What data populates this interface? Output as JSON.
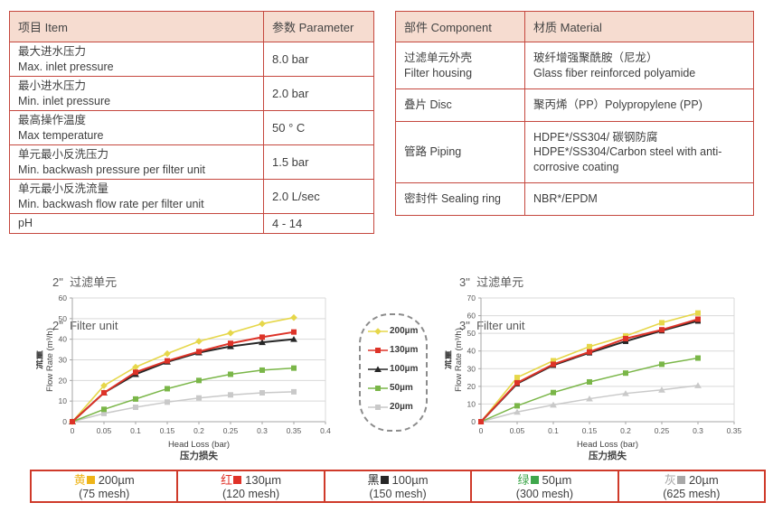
{
  "colors": {
    "table_border": "#c5473e",
    "header_bg": "#f6dcd0",
    "legend_border_red": "#cf3a2a",
    "grid": "#d9d9d9",
    "axis": "#a6a6a6",
    "tick_text": "#595959"
  },
  "spec_table": {
    "headers": [
      "项目 Item",
      "参数 Parameter"
    ],
    "rows": [
      {
        "item": [
          "最大进水压力",
          "Max. inlet pressure"
        ],
        "value": "8.0 bar"
      },
      {
        "item": [
          "最小进水压力",
          "Min. inlet pressure"
        ],
        "value": "2.0 bar"
      },
      {
        "item": [
          "最高操作温度",
          "Max temperature"
        ],
        "value": "50 ° C"
      },
      {
        "item": [
          "单元最小反洗压力",
          "Min. backwash pressure per filter unit"
        ],
        "value": "1.5 bar"
      },
      {
        "item": [
          "单元最小反洗流量",
          "Min. backwash flow rate per filter unit"
        ],
        "value": "2.0 L/sec"
      },
      {
        "item": [
          "pH"
        ],
        "value": "4 - 14"
      }
    ]
  },
  "material_table": {
    "headers": [
      "部件 Component",
      "材质 Material"
    ],
    "rows": [
      {
        "component": [
          "过滤单元外壳",
          "Filter housing"
        ],
        "material": [
          "玻纤增强聚酰胺（尼龙）",
          "Glass fiber reinforced polyamide"
        ]
      },
      {
        "component": [
          "叠片 Disc"
        ],
        "material": [
          "聚丙烯（PP）Polypropylene (PP)"
        ]
      },
      {
        "component": [
          "管路 Piping"
        ],
        "material": [
          "HDPE*/SS304/ 碳钢防腐",
          "HDPE*/SS304/Carbon steel with anti-corrosive coating"
        ]
      },
      {
        "component": [
          "密封件 Sealing ring"
        ],
        "material": [
          "NBR*/EPDM"
        ]
      }
    ]
  },
  "chart_data": [
    {
      "type": "line",
      "title_cn": "2\"  过滤单元",
      "title_en": "2\"  Filter unit",
      "ylabel_cn": "流量",
      "ylabel_en": "Flow Rate (m³/h)",
      "xlabel": "Head Loss (bar)",
      "xlabel_cn": "压力损失",
      "xlim": [
        0,
        0.4
      ],
      "ylim": [
        0,
        60
      ],
      "ytick_step": 10,
      "xticks": [
        "0",
        "0.05",
        "0.1",
        "0.15",
        "0.2",
        "0.25",
        "0.3",
        "0.35",
        "0.4"
      ],
      "x": [
        0,
        0.05,
        0.1,
        0.15,
        0.2,
        0.25,
        0.3,
        0.35
      ],
      "series": [
        {
          "name": "20µm",
          "color": "#c9c9c9",
          "marker": "square",
          "lw": 1.5,
          "values": [
            0,
            4,
            7,
            9.5,
            11.5,
            13,
            14,
            14.5
          ]
        },
        {
          "name": "50µm",
          "color": "#7ab648",
          "marker": "square",
          "lw": 1.5,
          "values": [
            0,
            6,
            11,
            16,
            20,
            23,
            25,
            26
          ]
        },
        {
          "name": "200µm",
          "color": "#e6d74a",
          "marker": "diamond",
          "lw": 1.6,
          "values": [
            0,
            17.5,
            26.5,
            33,
            39,
            43,
            47.5,
            50.5
          ]
        },
        {
          "name": "100µm",
          "color": "#262626",
          "marker": "triangle",
          "lw": 2,
          "values": [
            0,
            14,
            23,
            29,
            33.5,
            36.5,
            38.5,
            40
          ]
        },
        {
          "name": "130µm",
          "color": "#dd3328",
          "marker": "square",
          "lw": 2,
          "values": [
            0,
            14,
            24,
            29.5,
            34,
            38,
            41,
            43.5
          ]
        }
      ]
    },
    {
      "type": "line",
      "title_cn": "3\"  过滤单元",
      "title_en": "3\"  Filter unit",
      "ylabel_cn": "流量",
      "ylabel_en": "Flow Rate (m³/h)",
      "xlabel": "Head Loss (bar)",
      "xlabel_cn": "压力损失",
      "xlim": [
        0,
        0.35
      ],
      "ylim": [
        0,
        70
      ],
      "ytick_step": 10,
      "xticks": [
        "0",
        "0.05",
        "0.1",
        "0.15",
        "0.2",
        "0.25",
        "0.3",
        "0.35"
      ],
      "x": [
        0,
        0.05,
        0.1,
        0.15,
        0.2,
        0.25,
        0.3
      ],
      "series": [
        {
          "name": "20µm",
          "color": "#c9c9c9",
          "marker": "triangle",
          "lw": 1.5,
          "values": [
            0,
            5.5,
            9.5,
            13,
            16,
            18,
            20.5
          ]
        },
        {
          "name": "50µm",
          "color": "#7ab648",
          "marker": "square",
          "lw": 1.5,
          "values": [
            0,
            9,
            16.5,
            22.5,
            27.5,
            32.5,
            36
          ]
        },
        {
          "name": "200µm",
          "color": "#e6d74a",
          "marker": "square",
          "lw": 1.6,
          "values": [
            0,
            25,
            34.5,
            42.5,
            48.5,
            56,
            61.5
          ]
        },
        {
          "name": "100µm",
          "color": "#262626",
          "marker": "square",
          "lw": 2,
          "values": [
            0,
            21.5,
            32,
            39,
            45.5,
            51.5,
            57
          ]
        },
        {
          "name": "130µm",
          "color": "#dd3328",
          "marker": "square",
          "lw": 2,
          "values": [
            0,
            22,
            32.5,
            39.5,
            47,
            52,
            58
          ]
        }
      ]
    }
  ],
  "mid_legend": {
    "items": [
      {
        "label": "200µm",
        "color": "#e6d74a",
        "marker": "diamond"
      },
      {
        "label": "130µm",
        "color": "#dd3328",
        "marker": "square"
      },
      {
        "label": "100µm",
        "color": "#262626",
        "marker": "triangle"
      },
      {
        "label": "50µm",
        "color": "#7ab648",
        "marker": "square"
      },
      {
        "label": "20µm",
        "color": "#c9c9c9",
        "marker": "square"
      }
    ]
  },
  "bottom_legend": {
    "items": [
      {
        "cn": "黄",
        "color": "#eeb419",
        "size": "200µm",
        "mesh": "(75 mesh)"
      },
      {
        "cn": "红",
        "color": "#e03228",
        "size": "130µm",
        "mesh": "(120 mesh)"
      },
      {
        "cn": "黑",
        "color": "#262626",
        "size": "100µm",
        "mesh": "(150 mesh)"
      },
      {
        "cn": "绿",
        "color": "#3fa74c",
        "size": "50µm",
        "mesh": "(300 mesh)"
      },
      {
        "cn": "灰",
        "color": "#a8a8a8",
        "size": "20µm",
        "mesh": "(625 mesh)"
      }
    ]
  }
}
